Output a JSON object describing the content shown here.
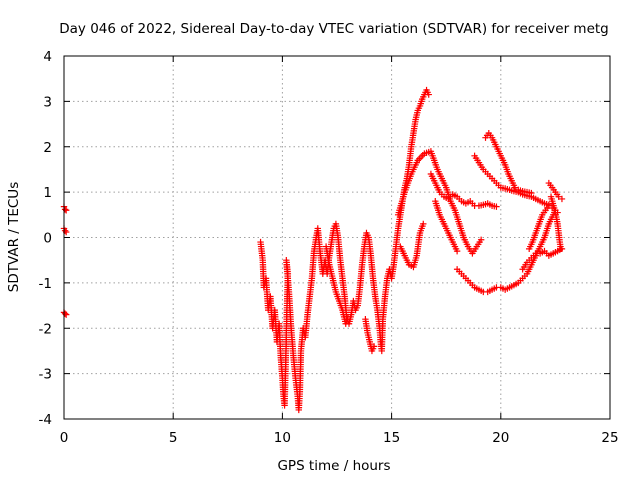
{
  "chart_data": {
    "type": "scatter",
    "title": "Day 046 of 2022, Sidereal Day-to-day VTEC variation (SDTVAR) for receiver metg",
    "xlabel": "GPS time / hours",
    "ylabel": "SDTVAR / TECUs",
    "xlim": [
      0,
      25
    ],
    "ylim": [
      -4,
      4
    ],
    "xticks": [
      0,
      5,
      10,
      15,
      20,
      25
    ],
    "yticks": [
      -4,
      -3,
      -2,
      -1,
      0,
      1,
      2,
      3,
      4
    ],
    "xtick_labels": [
      "0",
      "5",
      "10",
      "15",
      "20",
      "25"
    ],
    "ytick_labels": [
      "-4",
      "-3",
      "-2",
      "-1",
      "0",
      "1",
      "2",
      "3",
      "4"
    ],
    "grid": true,
    "marker": "plus",
    "color": "#ff0000",
    "segments": [
      [
        [
          0.0,
          0.68
        ],
        [
          0.05,
          0.62
        ],
        [
          0.1,
          0.6
        ]
      ],
      [
        [
          0.0,
          0.2
        ],
        [
          0.05,
          0.15
        ],
        [
          0.1,
          0.12
        ]
      ],
      [
        [
          0.0,
          -1.65
        ],
        [
          0.05,
          -1.68
        ],
        [
          0.1,
          -1.7
        ]
      ],
      [
        [
          9.0,
          -0.1
        ],
        [
          9.1,
          -0.5
        ],
        [
          9.15,
          -1.1
        ],
        [
          9.25,
          -0.9
        ],
        [
          9.35,
          -1.6
        ],
        [
          9.45,
          -1.3
        ],
        [
          9.55,
          -2.0
        ],
        [
          9.65,
          -1.6
        ],
        [
          9.75,
          -2.3
        ],
        [
          9.85,
          -1.9
        ],
        [
          9.92,
          -2.6
        ],
        [
          10.0,
          -3.1
        ],
        [
          10.05,
          -3.5
        ],
        [
          10.1,
          -3.7
        ],
        [
          10.15,
          -2.8
        ],
        [
          10.2,
          -1.7
        ],
        [
          10.25,
          -0.8
        ],
        [
          10.18,
          -0.5
        ],
        [
          10.3,
          -1.2
        ],
        [
          10.4,
          -2.0
        ],
        [
          10.5,
          -2.6
        ],
        [
          10.6,
          -3.1
        ],
        [
          10.7,
          -3.5
        ],
        [
          10.75,
          -3.8
        ],
        [
          10.8,
          -3.4
        ],
        [
          10.85,
          -2.5
        ],
        [
          10.95,
          -2.0
        ],
        [
          11.05,
          -2.2
        ],
        [
          11.15,
          -1.7
        ],
        [
          11.25,
          -1.3
        ],
        [
          11.35,
          -0.9
        ],
        [
          11.45,
          -0.3
        ],
        [
          11.55,
          0.0
        ],
        [
          11.62,
          0.2
        ],
        [
          11.72,
          -0.3
        ],
        [
          11.85,
          -0.8
        ],
        [
          11.95,
          -0.5
        ],
        [
          12.05,
          -0.8
        ],
        [
          12.15,
          -0.4
        ],
        [
          12.25,
          -0.1
        ],
        [
          12.35,
          0.2
        ],
        [
          12.45,
          0.3
        ],
        [
          12.55,
          0.0
        ],
        [
          12.65,
          -0.5
        ],
        [
          12.75,
          -0.9
        ],
        [
          12.85,
          -1.3
        ],
        [
          12.95,
          -1.8
        ],
        [
          13.05,
          -1.9
        ],
        [
          13.15,
          -1.7
        ],
        [
          13.25,
          -1.4
        ],
        [
          13.35,
          -1.6
        ],
        [
          13.45,
          -1.5
        ],
        [
          13.55,
          -1.1
        ],
        [
          13.65,
          -0.6
        ],
        [
          13.75,
          -0.2
        ],
        [
          13.85,
          0.1
        ],
        [
          13.95,
          0.0
        ],
        [
          14.05,
          -0.4
        ],
        [
          14.15,
          -0.9
        ],
        [
          14.25,
          -1.3
        ],
        [
          14.35,
          -1.6
        ],
        [
          14.45,
          -2.0
        ],
        [
          14.5,
          -2.3
        ],
        [
          14.55,
          -2.5
        ],
        [
          14.6,
          -1.8
        ],
        [
          14.7,
          -1.3
        ],
        [
          14.8,
          -0.9
        ],
        [
          14.9,
          -0.7
        ],
        [
          15.0,
          -0.9
        ],
        [
          15.1,
          -0.6
        ],
        [
          15.2,
          -0.2
        ],
        [
          15.3,
          0.2
        ],
        [
          15.4,
          0.5
        ],
        [
          15.5,
          0.8
        ],
        [
          15.6,
          1.1
        ],
        [
          15.7,
          1.3
        ],
        [
          15.8,
          1.6
        ],
        [
          15.9,
          2.0
        ],
        [
          16.0,
          2.3
        ],
        [
          16.1,
          2.6
        ],
        [
          16.2,
          2.8
        ],
        [
          16.3,
          2.9
        ],
        [
          16.4,
          3.05
        ],
        [
          16.5,
          3.15
        ],
        [
          16.6,
          3.25
        ],
        [
          16.7,
          3.15
        ]
      ],
      [
        [
          12.0,
          -0.2
        ],
        [
          12.15,
          -0.6
        ],
        [
          12.3,
          -0.9
        ],
        [
          12.45,
          -1.2
        ],
        [
          12.6,
          -1.4
        ],
        [
          12.75,
          -1.6
        ],
        [
          12.9,
          -1.9
        ],
        [
          13.0,
          -1.75
        ]
      ],
      [
        [
          13.8,
          -1.8
        ],
        [
          13.9,
          -2.1
        ],
        [
          14.0,
          -2.3
        ],
        [
          14.1,
          -2.5
        ],
        [
          14.2,
          -2.4
        ]
      ],
      [
        [
          15.4,
          -0.2
        ],
        [
          15.6,
          -0.4
        ],
        [
          15.8,
          -0.6
        ],
        [
          16.0,
          -0.65
        ],
        [
          16.15,
          -0.4
        ],
        [
          16.3,
          0.1
        ],
        [
          16.45,
          0.3
        ]
      ],
      [
        [
          15.3,
          0.5
        ],
        [
          15.6,
          1.0
        ],
        [
          15.9,
          1.4
        ],
        [
          16.2,
          1.7
        ],
        [
          16.5,
          1.85
        ],
        [
          16.8,
          1.9
        ],
        [
          16.95,
          1.7
        ],
        [
          17.1,
          1.5
        ],
        [
          17.3,
          1.3
        ],
        [
          17.5,
          1.1
        ],
        [
          17.7,
          0.8
        ],
        [
          17.9,
          0.6
        ],
        [
          18.1,
          0.3
        ],
        [
          18.3,
          0.0
        ],
        [
          18.5,
          -0.2
        ],
        [
          18.7,
          -0.35
        ],
        [
          18.9,
          -0.2
        ],
        [
          19.1,
          -0.05
        ]
      ],
      [
        [
          16.8,
          1.4
        ],
        [
          17.0,
          1.2
        ],
        [
          17.2,
          1.0
        ],
        [
          17.4,
          0.9
        ],
        [
          17.6,
          0.85
        ],
        [
          17.8,
          0.95
        ],
        [
          18.0,
          0.9
        ],
        [
          18.2,
          0.8
        ],
        [
          18.4,
          0.75
        ],
        [
          18.6,
          0.8
        ],
        [
          18.8,
          0.7
        ],
        [
          19.0,
          0.7
        ],
        [
          19.2,
          0.72
        ],
        [
          19.4,
          0.75
        ],
        [
          19.6,
          0.7
        ],
        [
          19.8,
          0.68
        ]
      ],
      [
        [
          17.0,
          0.8
        ],
        [
          17.2,
          0.5
        ],
        [
          17.4,
          0.3
        ],
        [
          17.6,
          0.1
        ],
        [
          17.8,
          -0.1
        ],
        [
          18.0,
          -0.3
        ]
      ],
      [
        [
          18.8,
          1.8
        ],
        [
          19.0,
          1.65
        ],
        [
          19.2,
          1.5
        ],
        [
          19.4,
          1.4
        ],
        [
          19.6,
          1.3
        ],
        [
          19.8,
          1.2
        ],
        [
          20.0,
          1.1
        ],
        [
          20.2,
          1.08
        ],
        [
          20.4,
          1.05
        ],
        [
          20.6,
          1.02
        ],
        [
          20.8,
          1.0
        ],
        [
          21.0,
          0.95
        ],
        [
          21.2,
          0.92
        ],
        [
          21.4,
          0.9
        ],
        [
          21.6,
          0.85
        ],
        [
          21.8,
          0.8
        ],
        [
          22.0,
          0.75
        ],
        [
          22.2,
          0.72
        ]
      ],
      [
        [
          19.3,
          2.2
        ],
        [
          19.45,
          2.3
        ],
        [
          19.6,
          2.2
        ],
        [
          19.75,
          2.05
        ],
        [
          19.9,
          1.9
        ],
        [
          20.05,
          1.75
        ],
        [
          20.2,
          1.6
        ],
        [
          20.35,
          1.4
        ],
        [
          20.5,
          1.25
        ],
        [
          20.65,
          1.1
        ],
        [
          20.8,
          1.05
        ],
        [
          21.0,
          1.02
        ],
        [
          21.2,
          1.0
        ],
        [
          21.4,
          0.98
        ]
      ],
      [
        [
          18.0,
          -0.7
        ],
        [
          18.2,
          -0.8
        ],
        [
          18.4,
          -0.9
        ],
        [
          18.6,
          -1.0
        ],
        [
          18.8,
          -1.1
        ],
        [
          19.0,
          -1.15
        ],
        [
          19.2,
          -1.2
        ],
        [
          19.4,
          -1.2
        ],
        [
          19.6,
          -1.15
        ],
        [
          19.8,
          -1.1
        ],
        [
          20.0,
          -1.1
        ],
        [
          20.2,
          -1.15
        ],
        [
          20.4,
          -1.1
        ],
        [
          20.6,
          -1.05
        ],
        [
          20.8,
          -1.0
        ],
        [
          21.0,
          -0.9
        ],
        [
          21.2,
          -0.8
        ],
        [
          21.4,
          -0.6
        ],
        [
          21.6,
          -0.4
        ],
        [
          21.8,
          -0.2
        ],
        [
          22.0,
          0.0
        ],
        [
          22.2,
          0.3
        ],
        [
          22.4,
          0.5
        ],
        [
          22.5,
          0.6
        ],
        [
          22.6,
          0.55
        ]
      ],
      [
        [
          21.0,
          -0.7
        ],
        [
          21.2,
          -0.55
        ],
        [
          21.4,
          -0.45
        ],
        [
          21.6,
          -0.35
        ],
        [
          21.8,
          -0.35
        ],
        [
          22.0,
          -0.3
        ],
        [
          22.2,
          -0.4
        ],
        [
          22.4,
          -0.35
        ],
        [
          22.6,
          -0.3
        ],
        [
          22.8,
          -0.25
        ]
      ],
      [
        [
          21.3,
          -0.25
        ],
        [
          21.45,
          -0.1
        ],
        [
          21.6,
          0.1
        ],
        [
          21.75,
          0.3
        ],
        [
          21.9,
          0.5
        ],
        [
          22.05,
          0.6
        ],
        [
          22.2,
          0.7
        ],
        [
          22.35,
          0.65
        ]
      ],
      [
        [
          22.3,
          0.9
        ],
        [
          22.5,
          0.55
        ],
        [
          22.6,
          0.3
        ],
        [
          22.65,
          0.1
        ],
        [
          22.7,
          -0.1
        ],
        [
          22.75,
          -0.25
        ]
      ],
      [
        [
          22.2,
          1.2
        ],
        [
          22.35,
          1.1
        ],
        [
          22.5,
          1.0
        ],
        [
          22.65,
          0.9
        ],
        [
          22.8,
          0.85
        ]
      ]
    ]
  }
}
